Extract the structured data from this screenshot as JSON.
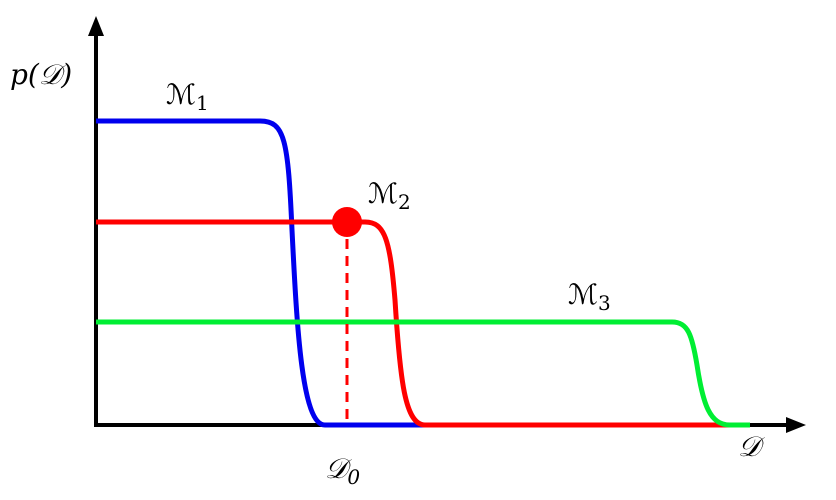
{
  "axes": {
    "y_label": "p(𝒟)",
    "x_label": "𝒟"
  },
  "marker": {
    "symbol": "𝒟",
    "subscript": "0"
  },
  "models": [
    {
      "symbol": "ℳ",
      "subscript": "1"
    },
    {
      "symbol": "ℳ",
      "subscript": "2"
    },
    {
      "symbol": "ℳ",
      "subscript": "3"
    }
  ]
}
